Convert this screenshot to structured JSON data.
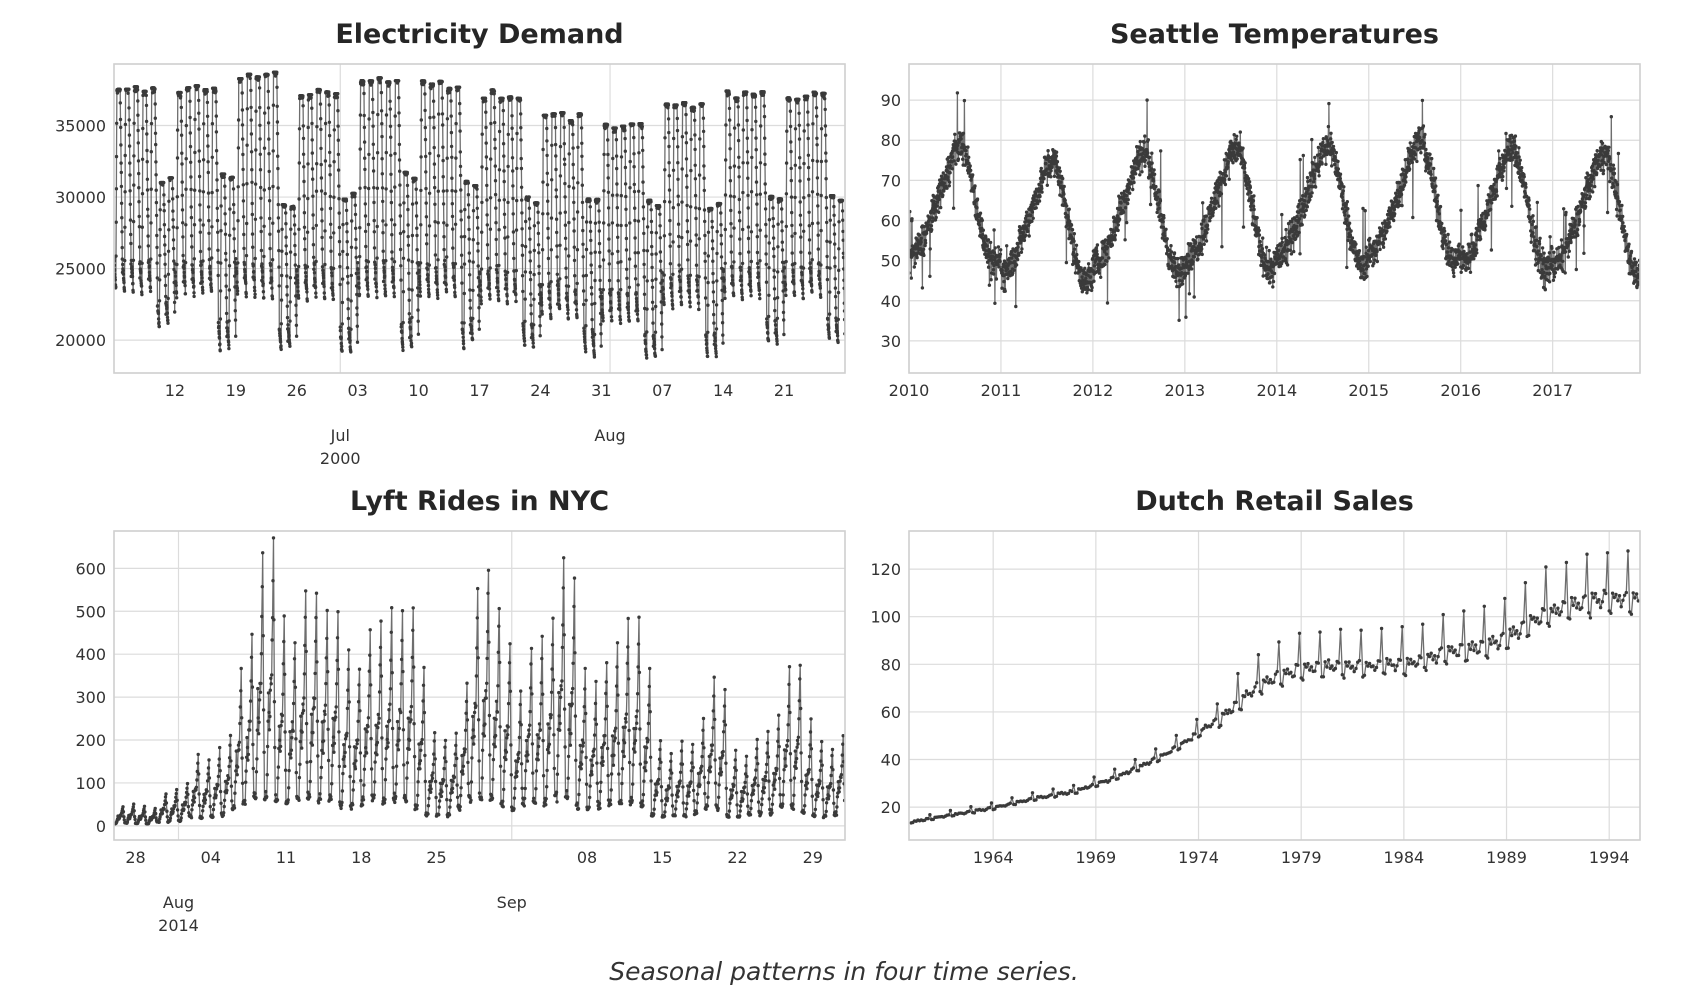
{
  "caption": "Seasonal patterns in four time series.",
  "chart_data": [
    {
      "type": "line",
      "title": "Electricity Demand",
      "x_unit": "days since 2000-06-05 (Monday), half-hourly samples",
      "xlim": [
        0,
        84
      ],
      "ylim": [
        17700,
        39300
      ],
      "grid": true,
      "yticks": [
        {
          "v": 20000,
          "label": "20000"
        },
        {
          "v": 25000,
          "label": "25000"
        },
        {
          "v": 30000,
          "label": "30000"
        },
        {
          "v": 35000,
          "label": "35000"
        }
      ],
      "xticks_minor": [
        {
          "v": 7,
          "label": "12"
        },
        {
          "v": 14,
          "label": "19"
        },
        {
          "v": 21,
          "label": "26"
        },
        {
          "v": 28,
          "label": "03"
        },
        {
          "v": 35,
          "label": "10"
        },
        {
          "v": 42,
          "label": "17"
        },
        {
          "v": 49,
          "label": "24"
        },
        {
          "v": 56,
          "label": "31"
        },
        {
          "v": 63,
          "label": "07"
        },
        {
          "v": 70,
          "label": "14"
        },
        {
          "v": 77,
          "label": "21"
        }
      ],
      "xticks_major": [
        {
          "v": 26,
          "label": "Jul",
          "sub": "2000"
        },
        {
          "v": 57,
          "label": "Aug",
          "sub": ""
        }
      ],
      "weekly": {
        "weekday_peak": [
          37500,
          37600,
          38300,
          37200,
          38100,
          37800,
          37100,
          35700,
          35100,
          36500,
          37200,
          37100
        ],
        "weekend_peak": [
          31000,
          31500,
          29500,
          30000,
          31500,
          31000,
          30000,
          30000,
          29500,
          29500,
          30000,
          30000
        ],
        "weekday_trough": [
          23300,
          23200,
          23000,
          22800,
          23100,
          23000,
          22700,
          21700,
          21200,
          22300,
          23000,
          23100
        ],
        "weekend_trough": [
          20900,
          19400,
          19300,
          19200,
          19500,
          19600,
          19400,
          18900,
          18700,
          19000,
          19700,
          19700
        ]
      }
    },
    {
      "type": "line",
      "title": "Seattle Temperatures",
      "x_unit": "year (daily samples)",
      "xlim": [
        2010,
        2017.95
      ],
      "ylim": [
        22,
        99
      ],
      "grid": true,
      "yticks": [
        {
          "v": 30,
          "label": "30"
        },
        {
          "v": 40,
          "label": "40"
        },
        {
          "v": 50,
          "label": "50"
        },
        {
          "v": 60,
          "label": "60"
        },
        {
          "v": 70,
          "label": "70"
        },
        {
          "v": 80,
          "label": "80"
        },
        {
          "v": 90,
          "label": "90"
        }
      ],
      "xticks": [
        {
          "v": 2010,
          "label": "2010"
        },
        {
          "v": 2011,
          "label": "2011"
        },
        {
          "v": 2012,
          "label": "2012"
        },
        {
          "v": 2013,
          "label": "2013"
        },
        {
          "v": 2014,
          "label": "2014"
        },
        {
          "v": 2015,
          "label": "2015"
        },
        {
          "v": 2016,
          "label": "2016"
        },
        {
          "v": 2017,
          "label": "2017"
        }
      ],
      "monthly_mean": [
        49,
        50,
        54,
        59,
        65,
        70,
        76,
        77,
        70,
        60,
        51,
        46
      ],
      "year_offset": [
        2,
        -2,
        0,
        1,
        2,
        3,
        1,
        0
      ],
      "daily_spread": 6
    },
    {
      "type": "line",
      "title": "Lyft Rides in NYC",
      "x_unit": "days since 2014-07-26, hourly samples",
      "xlim": [
        0,
        68
      ],
      "ylim": [
        -33,
        687
      ],
      "grid": true,
      "yticks": [
        {
          "v": 0,
          "label": "0"
        },
        {
          "v": 100,
          "label": "100"
        },
        {
          "v": 200,
          "label": "200"
        },
        {
          "v": 300,
          "label": "300"
        },
        {
          "v": 400,
          "label": "400"
        },
        {
          "v": 500,
          "label": "500"
        },
        {
          "v": 600,
          "label": "600"
        }
      ],
      "xticks_minor": [
        {
          "v": 2,
          "label": "28"
        },
        {
          "v": 9,
          "label": "04"
        },
        {
          "v": 16,
          "label": "11"
        },
        {
          "v": 23,
          "label": "18"
        },
        {
          "v": 30,
          "label": "25"
        },
        {
          "v": 44,
          "label": "08"
        },
        {
          "v": 51,
          "label": "15"
        },
        {
          "v": 58,
          "label": "22"
        },
        {
          "v": 65,
          "label": "29"
        }
      ],
      "xticks_major": [
        {
          "v": 6,
          "label": "Aug",
          "sub": "2014"
        },
        {
          "v": 37,
          "label": "Sep",
          "sub": ""
        }
      ],
      "daily_peak": [
        45,
        50,
        45,
        40,
        75,
        85,
        100,
        165,
        155,
        180,
        210,
        355,
        440,
        630,
        655,
        485,
        435,
        550,
        545,
        500,
        505,
        405,
        370,
        455,
        480,
        500,
        500,
        510,
        370,
        220,
        205,
        215,
        335,
        545,
        600,
        520,
        430,
        315,
        420,
        435,
        475,
        625,
        575,
        370,
        330,
        385,
        420,
        480,
        485,
        370,
        200,
        170,
        195,
        190,
        250,
        345,
        320,
        175,
        160,
        200,
        220,
        255,
        365,
        375,
        245,
        195,
        180,
        215
      ]
    },
    {
      "type": "line",
      "title": "Dutch Retail Sales",
      "x_unit": "year (monthly samples from 1960)",
      "xlim": [
        1959.9,
        1995.5
      ],
      "ylim": [
        6.2,
        136
      ],
      "grid": true,
      "yticks": [
        {
          "v": 20,
          "label": "20"
        },
        {
          "v": 40,
          "label": "40"
        },
        {
          "v": 60,
          "label": "60"
        },
        {
          "v": 80,
          "label": "80"
        },
        {
          "v": 100,
          "label": "100"
        },
        {
          "v": 120,
          "label": "120"
        }
      ],
      "xticks": [
        {
          "v": 1964,
          "label": "1964"
        },
        {
          "v": 1969,
          "label": "1969"
        },
        {
          "v": 1974,
          "label": "1974"
        },
        {
          "v": 1979,
          "label": "1979"
        },
        {
          "v": 1984,
          "label": "1984"
        },
        {
          "v": 1989,
          "label": "1989"
        },
        {
          "v": 1994,
          "label": "1994"
        }
      ],
      "annual_level": [
        14,
        15.5,
        17,
        18.5,
        20,
        22,
        24,
        25.5,
        27,
        30,
        33,
        37,
        41,
        46,
        52,
        58,
        66,
        73,
        77,
        80,
        81,
        81,
        81,
        82,
        82,
        84,
        87,
        88,
        90,
        93,
        99,
        104,
        107,
        109,
        110,
        110
      ],
      "seasonal_factor": [
        0.93,
        0.92,
        1.0,
        0.98,
        1.0,
        0.97,
        0.98,
        0.95,
        0.96,
        1.0,
        1.0,
        1.16
      ]
    }
  ]
}
